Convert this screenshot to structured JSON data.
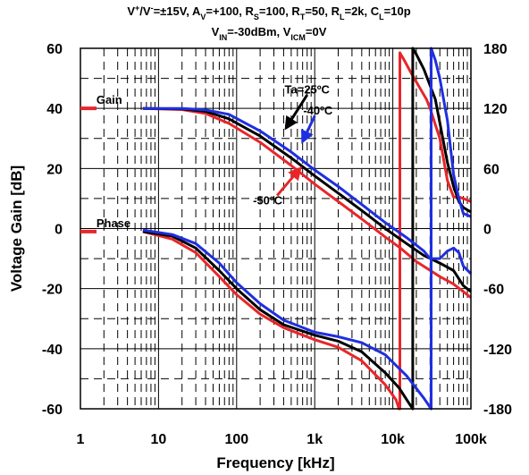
{
  "chart_data": {
    "type": "line",
    "title_lines": [
      [
        {
          "t": "V"
        },
        {
          "t": "+",
          "s": "sup"
        },
        {
          "t": "/V"
        },
        {
          "t": "-",
          "s": "sup"
        },
        {
          "t": "=±15V, A"
        },
        {
          "t": "V",
          "s": "sub"
        },
        {
          "t": "=+100, R"
        },
        {
          "t": "S",
          "s": "sub"
        },
        {
          "t": "=100, R"
        },
        {
          "t": "T",
          "s": "sub"
        },
        {
          "t": "=50, R"
        },
        {
          "t": "L",
          "s": "sub"
        },
        {
          "t": "=2k, C"
        },
        {
          "t": "L",
          "s": "sub"
        },
        {
          "t": "=10p"
        }
      ],
      [
        {
          "t": "V"
        },
        {
          "t": "IN",
          "s": "sub"
        },
        {
          "t": "=-30dBm, V"
        },
        {
          "t": "ICM",
          "s": "sub"
        },
        {
          "t": "=0V"
        }
      ]
    ],
    "xlabel": "Frequency [kHz]",
    "ylabel": "Voltage Gain [dB]",
    "x_scale": "log",
    "xlim": [
      1,
      100000
    ],
    "ylim": [
      -60,
      60
    ],
    "y2lim": [
      -180,
      180
    ],
    "x_ticks": [
      1,
      10,
      100,
      1000,
      10000,
      100000
    ],
    "x_tick_labels": [
      "1",
      "10",
      "100",
      "1k",
      "10k",
      "100k"
    ],
    "y_ticks": [
      60,
      40,
      20,
      0,
      -20,
      -40,
      -60
    ],
    "y_tick_labels": [
      "60",
      "40",
      "20",
      "0",
      "-20",
      "-40",
      "-60"
    ],
    "y2_ticks": [
      180,
      120,
      60,
      0,
      -60,
      -120,
      -180
    ],
    "y2_tick_labels": [
      "180",
      "120",
      "60",
      "0",
      "-60",
      "-120",
      "-180"
    ],
    "grid": true,
    "annotations": [
      {
        "text": "Ta=25ºC",
        "x": 800,
        "y": 46.5
      },
      {
        "text": "-40ºC",
        "x": 1100,
        "y": 39.5
      },
      {
        "text": "-50ºC",
        "x": 250,
        "y": 9.5
      },
      {
        "text": "Gain",
        "x": 1.6,
        "y": 43
      },
      {
        "text": "Phase",
        "x": 1.6,
        "y": 2
      }
    ],
    "series": [
      {
        "color": "#e8262a",
        "gain": [
          [
            6.3,
            40
          ],
          [
            20,
            39.6
          ],
          [
            40,
            38.3
          ],
          [
            80,
            35
          ],
          [
            200,
            28.7
          ],
          [
            500,
            21
          ],
          [
            1000,
            14.8
          ],
          [
            2000,
            9
          ],
          [
            4000,
            3.2
          ],
          [
            8000,
            -2.8
          ],
          [
            12500,
            -6.5
          ],
          [
            20000,
            -11
          ],
          [
            40000,
            -16
          ],
          [
            60000,
            -18.5
          ],
          [
            100000,
            -23
          ]
        ],
        "phase": [
          [
            6.3,
            -1
          ],
          [
            15,
            -3.5
          ],
          [
            30,
            -8
          ],
          [
            60,
            -16
          ],
          [
            100,
            -22
          ],
          [
            200,
            -28.5
          ],
          [
            400,
            -33
          ],
          [
            1000,
            -37
          ],
          [
            2000,
            -39.5
          ],
          [
            4000,
            -44
          ],
          [
            8000,
            -52
          ],
          [
            11000,
            -57
          ],
          [
            12000,
            -60
          ],
          [
            12300,
            -60
          ],
          [
            12300,
            58.5
          ],
          [
            14000,
            56
          ],
          [
            17000,
            52
          ],
          [
            22000,
            47
          ],
          [
            27000,
            43
          ],
          [
            30000,
            40
          ],
          [
            40000,
            30
          ],
          [
            50000,
            16
          ],
          [
            60000,
            10.5
          ],
          [
            70000,
            10.5
          ],
          [
            80000,
            10
          ],
          [
            100000,
            9
          ]
        ]
      },
      {
        "color": "#000000",
        "gain": [
          [
            6.3,
            40
          ],
          [
            20,
            39.8
          ],
          [
            40,
            39
          ],
          [
            80,
            36.5
          ],
          [
            200,
            30.8
          ],
          [
            500,
            23.5
          ],
          [
            1000,
            17.5
          ],
          [
            2000,
            11.8
          ],
          [
            4000,
            6
          ],
          [
            8000,
            0
          ],
          [
            15000,
            -5
          ],
          [
            25000,
            -9
          ],
          [
            40000,
            -11.5
          ],
          [
            60000,
            -14
          ],
          [
            80000,
            -19
          ],
          [
            100000,
            -21
          ]
        ],
        "phase": [
          [
            6.3,
            -1
          ],
          [
            15,
            -2.5
          ],
          [
            30,
            -6.5
          ],
          [
            60,
            -14
          ],
          [
            100,
            -20
          ],
          [
            200,
            -27
          ],
          [
            400,
            -32
          ],
          [
            1000,
            -35.5
          ],
          [
            2000,
            -37.5
          ],
          [
            4000,
            -41
          ],
          [
            8000,
            -48
          ],
          [
            12000,
            -53
          ],
          [
            16000,
            -58
          ],
          [
            18000,
            -60
          ],
          [
            18000,
            60
          ],
          [
            20000,
            58
          ],
          [
            25000,
            53
          ],
          [
            35000,
            43
          ],
          [
            50000,
            22
          ],
          [
            60000,
            14
          ],
          [
            70000,
            9
          ],
          [
            80000,
            7
          ],
          [
            100000,
            5.5
          ]
        ]
      },
      {
        "color": "#1f2fe0",
        "gain": [
          [
            6.3,
            40
          ],
          [
            20,
            40
          ],
          [
            40,
            39.5
          ],
          [
            80,
            38
          ],
          [
            200,
            32.5
          ],
          [
            500,
            25.5
          ],
          [
            1000,
            19.5
          ],
          [
            2000,
            14
          ],
          [
            4000,
            8
          ],
          [
            8000,
            2
          ],
          [
            15000,
            -3
          ],
          [
            25000,
            -7.5
          ],
          [
            30000,
            -10
          ],
          [
            40000,
            -10
          ],
          [
            50000,
            -7.5
          ],
          [
            60000,
            -6.5
          ],
          [
            70000,
            -8
          ],
          [
            80000,
            -12.5
          ],
          [
            100000,
            -15
          ]
        ],
        "phase": [
          [
            6.3,
            -0.5
          ],
          [
            15,
            -2
          ],
          [
            30,
            -5
          ],
          [
            60,
            -11.5
          ],
          [
            100,
            -18
          ],
          [
            200,
            -25
          ],
          [
            400,
            -30.5
          ],
          [
            1000,
            -34.5
          ],
          [
            2000,
            -36
          ],
          [
            4000,
            -38
          ],
          [
            8000,
            -42
          ],
          [
            15000,
            -49
          ],
          [
            25000,
            -56.5
          ],
          [
            31000,
            -60
          ],
          [
            31000,
            60
          ],
          [
            35000,
            56
          ],
          [
            40000,
            50
          ],
          [
            50000,
            36
          ],
          [
            60000,
            18
          ],
          [
            70000,
            10
          ],
          [
            80000,
            5
          ],
          [
            100000,
            4
          ]
        ]
      }
    ]
  }
}
